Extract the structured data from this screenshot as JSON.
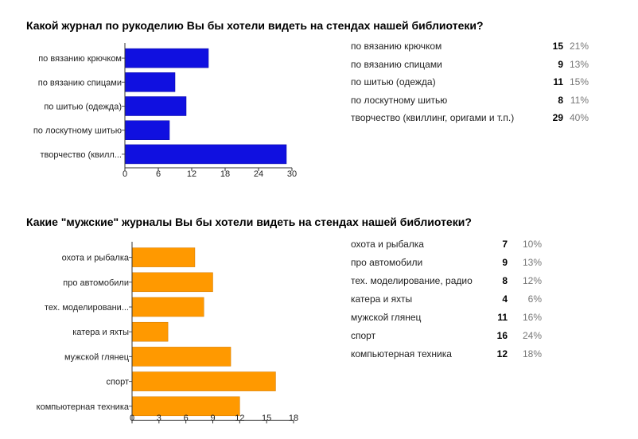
{
  "questions": [
    {
      "title": "Какой журнал по рукоделию Вы бы хотели видеть на стендах нашей библиотеки?",
      "chart_data": {
        "type": "bar",
        "orientation": "horizontal",
        "categories": [
          "по вязанию крючком",
          "по вязанию спицами",
          "по шитью (одежда)",
          "по лоскутному шитью",
          "творчество (квилл..."
        ],
        "values": [
          15,
          9,
          11,
          8,
          29
        ],
        "xlim": [
          0,
          30
        ],
        "xticks": [
          0,
          6,
          12,
          18,
          24,
          30
        ],
        "bar_color": "#1010e0"
      },
      "table": [
        {
          "label": "по вязанию крючком",
          "count": "15",
          "percent": "21%"
        },
        {
          "label": "по вязанию спицами",
          "count": "9",
          "percent": "13%"
        },
        {
          "label": "по шитью (одежда)",
          "count": "11",
          "percent": "15%"
        },
        {
          "label": "по лоскутному шитью",
          "count": "8",
          "percent": "11%"
        },
        {
          "label": "творчество (квиллинг, оригами и т.п.)",
          "count": "29",
          "percent": "40%"
        }
      ]
    },
    {
      "title": "Какие \"мужские\" журналы Вы бы хотели видеть на стендах нашей библиотеки?",
      "chart_data": {
        "type": "bar",
        "orientation": "horizontal",
        "categories": [
          "охота и рыбалка",
          "про автомобили",
          "тех. моделировани...",
          "катера и яхты",
          "мужской глянец",
          "спорт",
          "компьютерная техника"
        ],
        "values": [
          7,
          9,
          8,
          4,
          11,
          16,
          12
        ],
        "xlim": [
          0,
          18
        ],
        "xticks": [
          0,
          3,
          6,
          9,
          12,
          15,
          18
        ],
        "bar_color": "#ff9900"
      },
      "table": [
        {
          "label": "охота и рыбалка",
          "count": "7",
          "percent": "10%"
        },
        {
          "label": "про автомобили",
          "count": "9",
          "percent": "13%"
        },
        {
          "label": "тех. моделирование, радио",
          "count": "8",
          "percent": "12%"
        },
        {
          "label": "катера и яхты",
          "count": "4",
          "percent": "6%"
        },
        {
          "label": "мужской глянец",
          "count": "11",
          "percent": "16%"
        },
        {
          "label": "спорт",
          "count": "16",
          "percent": "24%"
        },
        {
          "label": "компьютерная техника",
          "count": "12",
          "percent": "18%"
        }
      ]
    }
  ]
}
